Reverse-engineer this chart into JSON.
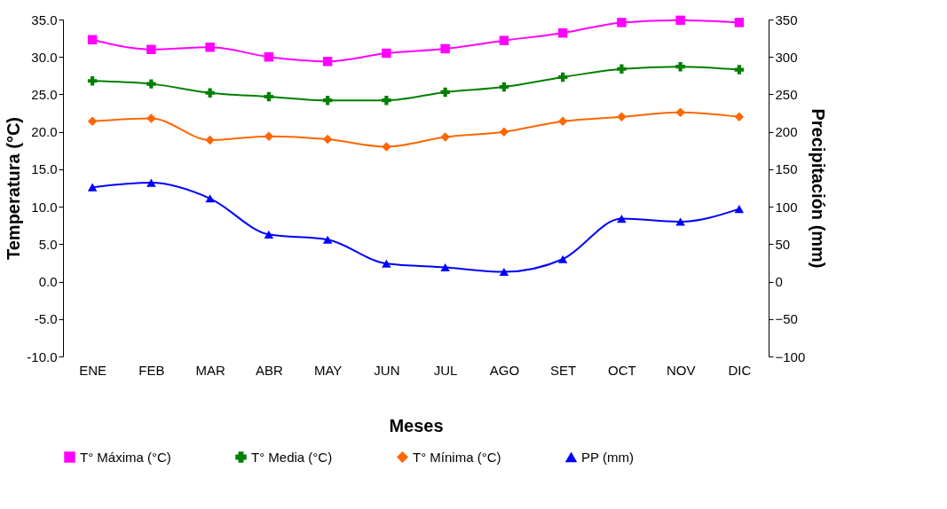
{
  "chart_data": {
    "type": "line",
    "xlabel": "Meses",
    "ylabel": "Temperatura (°C)",
    "y2label": "Precipitación (mm)",
    "categories": [
      "ENE",
      "FEB",
      "MAR",
      "ABR",
      "MAY",
      "JUN",
      "JUL",
      "AGO",
      "SET",
      "OCT",
      "NOV",
      "DIC"
    ],
    "ylim": [
      -10,
      35
    ],
    "yticks": [
      {
        "value": -10,
        "label": "-10.0"
      },
      {
        "value": -5,
        "label": "-5.0"
      },
      {
        "value": 0,
        "label": "0.0"
      },
      {
        "value": 5,
        "label": "5.0"
      },
      {
        "value": 10,
        "label": "10.0"
      },
      {
        "value": 15,
        "label": "15.0"
      },
      {
        "value": 20,
        "label": "20.0"
      },
      {
        "value": 25,
        "label": "25.0"
      },
      {
        "value": 30,
        "label": "30.0"
      },
      {
        "value": 35,
        "label": "35.0"
      }
    ],
    "y2lim": [
      -100,
      350
    ],
    "y2ticks": [
      -100,
      -50,
      0,
      50,
      100,
      150,
      200,
      250,
      300,
      350
    ],
    "legend": "bottom",
    "grid": false,
    "series": [
      {
        "name": "T° Máxima (°C)",
        "color": "#ff00ff",
        "marker": "square",
        "values": [
          32.3,
          31.0,
          31.3,
          30.0,
          29.4,
          30.5,
          31.1,
          32.2,
          33.2,
          34.6,
          34.9,
          34.6
        ]
      },
      {
        "name": "T° Media (°C)",
        "color": "#008000",
        "marker": "cross",
        "values": [
          26.8,
          26.4,
          25.2,
          24.7,
          24.2,
          24.2,
          25.3,
          26.0,
          27.3,
          28.4,
          28.7,
          28.3
        ]
      },
      {
        "name": "T° Mínima (°C)",
        "color": "#ff6600",
        "marker": "diamond",
        "values": [
          21.4,
          21.8,
          18.9,
          19.4,
          19.0,
          18.0,
          19.3,
          20.0,
          21.4,
          22.0,
          22.6,
          22.0
        ]
      },
      {
        "name": "PP  (mm)",
        "color": "#0000ff",
        "marker": "triangle",
        "axis": "y2",
        "values": [
          126,
          132,
          111,
          63,
          56,
          24,
          19,
          13,
          30,
          84,
          80,
          97
        ]
      }
    ]
  }
}
